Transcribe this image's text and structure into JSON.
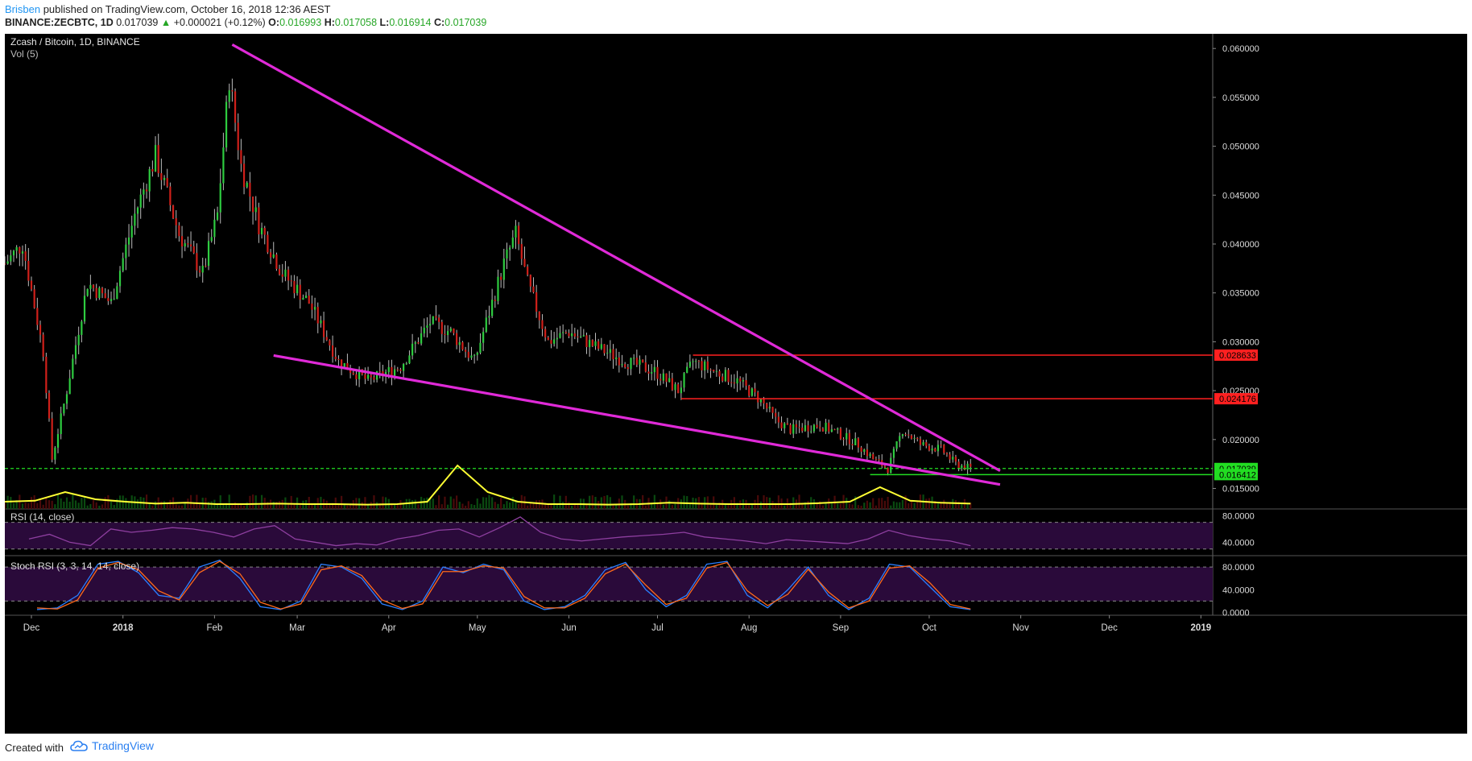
{
  "header": {
    "author": "Brisben",
    "published": "published on TradingView.com, October 16, 2018 12:36 AEST",
    "symbol": "BINANCE:ZECBTC, 1D",
    "price": "0.017039",
    "change": "+0.000021 (+0.12%)",
    "o_label": "O:",
    "o": "0.016993",
    "h_label": "H:",
    "h": "0.017058",
    "l_label": "L:",
    "l": "0.016914",
    "c_label": "C:",
    "c": "0.017039"
  },
  "footer": {
    "created": "Created with",
    "brand": "TradingView",
    "brand_icon": "tradingview-cloud-icon"
  },
  "colors": {
    "background": "#000000",
    "up": "#2ecc40",
    "down": "#d0201a",
    "wick": "#bbbbbb",
    "trendline": "#e02ad8",
    "resistance": "#ff2020",
    "support": "#22dd22",
    "volume_ma": "#ffff33",
    "rsi": "#8e3fa0",
    "stoch_k": "#2a7fff",
    "stoch_d": "#ff6a1a"
  },
  "chart_data": [
    {
      "type": "candlestick",
      "title": "Zcash / Bitcoin, 1D, BINANCE",
      "xlabel": "",
      "ylabel": "",
      "x_ticks": [
        "Dec",
        "2018",
        "Feb",
        "Mar",
        "Apr",
        "May",
        "Jun",
        "Jul",
        "Aug",
        "Sep",
        "Oct",
        "Nov",
        "Dec",
        "2019"
      ],
      "x_range": [
        "2017-11-22",
        "2019-01-05"
      ],
      "y_ticks": [
        "0.060000",
        "0.055000",
        "0.050000",
        "0.045000",
        "0.040000",
        "0.035000",
        "0.030000",
        "0.025000",
        "0.020000",
        "0.015000"
      ],
      "ylim": [
        0.0129,
        0.0615
      ],
      "grid": false,
      "series_close_approx": {
        "dates": [
          "2017-11-22",
          "2017-11-28",
          "2017-12-05",
          "2017-12-08",
          "2017-12-13",
          "2017-12-20",
          "2017-12-28",
          "2018-01-05",
          "2018-01-12",
          "2018-01-20",
          "2018-01-28",
          "2018-02-02",
          "2018-02-06",
          "2018-02-10",
          "2018-02-16",
          "2018-02-24",
          "2018-03-05",
          "2018-03-15",
          "2018-03-25",
          "2018-04-05",
          "2018-04-15",
          "2018-04-22",
          "2018-04-30",
          "2018-05-10",
          "2018-05-14",
          "2018-05-18",
          "2018-05-25",
          "2018-06-01",
          "2018-06-10",
          "2018-06-20",
          "2018-06-30",
          "2018-07-08",
          "2018-07-13",
          "2018-07-20",
          "2018-07-28",
          "2018-08-05",
          "2018-08-10",
          "2018-08-15",
          "2018-08-25",
          "2018-09-01",
          "2018-09-07",
          "2018-09-12",
          "2018-09-17",
          "2018-09-22",
          "2018-09-28",
          "2018-10-05",
          "2018-10-10",
          "2018-10-15"
        ],
        "values": [
          0.038,
          0.04,
          0.029,
          0.018,
          0.025,
          0.036,
          0.034,
          0.043,
          0.049,
          0.041,
          0.037,
          0.043,
          0.057,
          0.048,
          0.042,
          0.037,
          0.034,
          0.028,
          0.026,
          0.0275,
          0.032,
          0.031,
          0.028,
          0.038,
          0.041,
          0.036,
          0.03,
          0.031,
          0.0295,
          0.028,
          0.027,
          0.025,
          0.028,
          0.027,
          0.026,
          0.024,
          0.022,
          0.021,
          0.0215,
          0.0205,
          0.0195,
          0.018,
          0.017,
          0.021,
          0.0195,
          0.019,
          0.0175,
          0.017039
        ]
      },
      "price_labels": [
        {
          "value": "0.028633",
          "color": "#ff2020"
        },
        {
          "value": "0.024176",
          "color": "#ff2020"
        },
        {
          "value": "0.017039",
          "color": "#22dd22"
        },
        {
          "value": "0.016412",
          "color": "#22dd22"
        }
      ],
      "horizontal_lines": [
        0.028633,
        0.024176,
        0.017039,
        0.016412
      ],
      "trendlines": [
        {
          "from": [
            "2018-02-07",
            0.0604
          ],
          "to": [
            "2018-10-25",
            0.0168
          ]
        },
        {
          "from": [
            "2018-02-21",
            0.0286
          ],
          "to": [
            "2018-10-25",
            0.0154
          ]
        }
      ]
    },
    {
      "type": "bar",
      "title": "Vol (5)",
      "xlabel": "",
      "ylabel": "",
      "note": "volume histogram with moving average (yellow line), spike in mid-May and late-September",
      "ma_values": [
        0.1,
        0.12,
        0.3,
        0.15,
        0.1,
        0.06,
        0.08,
        0.05,
        0.05,
        0.06,
        0.05,
        0.05,
        0.04,
        0.05,
        0.1,
        0.85,
        0.3,
        0.1,
        0.05,
        0.05,
        0.04,
        0.05,
        0.08,
        0.06,
        0.05,
        0.05,
        0.05,
        0.07,
        0.1,
        0.4,
        0.12,
        0.08,
        0.06
      ]
    },
    {
      "type": "line",
      "title": "RSI (14, close)",
      "xlabel": "",
      "ylabel": "",
      "y_ticks": [
        "80.0000",
        "40.0000"
      ],
      "ylim": [
        20,
        90
      ],
      "bands": [
        70,
        30
      ],
      "values": [
        45,
        52,
        40,
        35,
        60,
        55,
        58,
        62,
        60,
        55,
        48,
        60,
        65,
        45,
        40,
        35,
        38,
        36,
        45,
        50,
        58,
        60,
        48,
        62,
        78,
        55,
        45,
        42,
        45,
        48,
        50,
        52,
        55,
        48,
        45,
        42,
        38,
        44,
        42,
        40,
        38,
        45,
        58,
        50,
        45,
        42,
        35
      ]
    },
    {
      "type": "line",
      "title": "Stoch RSI (3, 3, 14, 14, close)",
      "xlabel": "",
      "ylabel": "",
      "y_ticks": [
        "80.0000",
        "40.0000",
        "0.0000"
      ],
      "ylim": [
        -5,
        100
      ],
      "bands": [
        80,
        20
      ],
      "series": [
        {
          "name": "",
          "values": [
            5,
            8,
            30,
            85,
            90,
            70,
            30,
            25,
            80,
            92,
            60,
            10,
            5,
            20,
            85,
            80,
            60,
            15,
            5,
            20,
            80,
            70,
            85,
            75,
            20,
            5,
            10,
            30,
            75,
            88,
            40,
            10,
            30,
            85,
            90,
            30,
            8,
            40,
            80,
            30,
            5,
            25,
            85,
            80,
            45,
            10,
            5
          ]
        },
        {
          "name": "",
          "values": [
            8,
            6,
            22,
            78,
            88,
            75,
            38,
            22,
            70,
            90,
            68,
            18,
            6,
            15,
            75,
            82,
            65,
            22,
            7,
            15,
            72,
            72,
            82,
            78,
            28,
            8,
            8,
            25,
            68,
            85,
            48,
            14,
            25,
            78,
            88,
            38,
            12,
            32,
            76,
            36,
            8,
            20,
            78,
            82,
            52,
            14,
            6
          ]
        }
      ]
    }
  ]
}
